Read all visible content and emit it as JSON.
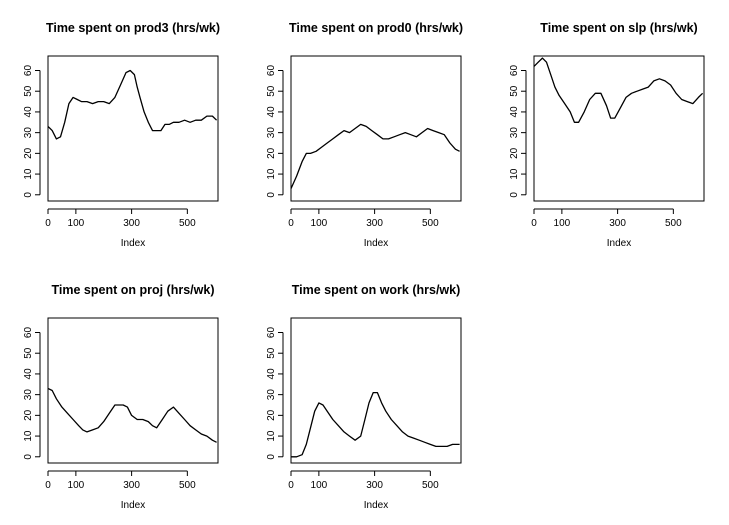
{
  "chart_data": [
    {
      "type": "line",
      "title": "Time spent on prod3 (hrs/wk)",
      "xlabel": "Index",
      "ylabel": "",
      "xlim": [
        0,
        610
      ],
      "ylim": [
        0,
        65
      ],
      "xticks": [
        0,
        100,
        300,
        500
      ],
      "yticks": [
        0,
        10,
        20,
        30,
        40,
        50,
        60
      ],
      "x": [
        0,
        15,
        30,
        45,
        60,
        75,
        90,
        105,
        120,
        140,
        160,
        180,
        200,
        220,
        240,
        260,
        280,
        295,
        310,
        320,
        330,
        345,
        360,
        375,
        390,
        405,
        420,
        435,
        450,
        470,
        490,
        510,
        530,
        550,
        570,
        590,
        605
      ],
      "y": [
        33,
        31,
        27,
        28,
        35,
        44,
        47,
        46,
        45,
        45,
        44,
        45,
        45,
        44,
        47,
        53,
        59,
        60,
        58,
        52,
        47,
        40,
        35,
        31,
        31,
        31,
        34,
        34,
        35,
        35,
        36,
        35,
        36,
        36,
        38,
        38,
        36
      ]
    },
    {
      "type": "line",
      "title": "Time spent on prod0 (hrs/wk)",
      "xlabel": "Index",
      "ylabel": "",
      "xlim": [
        0,
        610
      ],
      "ylim": [
        0,
        65
      ],
      "xticks": [
        0,
        100,
        300,
        500
      ],
      "yticks": [
        0,
        10,
        20,
        30,
        40,
        50,
        60
      ],
      "x": [
        0,
        20,
        40,
        55,
        70,
        90,
        110,
        130,
        150,
        170,
        190,
        210,
        230,
        250,
        270,
        290,
        310,
        330,
        350,
        370,
        390,
        410,
        430,
        450,
        470,
        490,
        510,
        530,
        550,
        570,
        590,
        605
      ],
      "y": [
        3,
        9,
        16,
        20,
        20,
        21,
        23,
        25,
        27,
        29,
        31,
        30,
        32,
        34,
        33,
        31,
        29,
        27,
        27,
        28,
        29,
        30,
        29,
        28,
        30,
        32,
        31,
        30,
        29,
        25,
        22,
        21
      ]
    },
    {
      "type": "line",
      "title": "Time spent on slp (hrs/wk)",
      "xlabel": "Index",
      "ylabel": "",
      "xlim": [
        0,
        610
      ],
      "ylim": [
        0,
        65
      ],
      "xticks": [
        0,
        100,
        300,
        500
      ],
      "yticks": [
        0,
        10,
        20,
        30,
        40,
        50,
        60
      ],
      "x": [
        0,
        15,
        30,
        45,
        60,
        75,
        90,
        110,
        130,
        145,
        160,
        180,
        200,
        220,
        240,
        260,
        275,
        290,
        310,
        330,
        350,
        370,
        390,
        410,
        430,
        450,
        470,
        490,
        510,
        530,
        550,
        570,
        590,
        605
      ],
      "y": [
        62,
        64,
        66,
        64,
        58,
        52,
        48,
        44,
        40,
        35,
        35,
        40,
        46,
        49,
        49,
        43,
        37,
        37,
        42,
        47,
        49,
        50,
        51,
        52,
        55,
        56,
        55,
        53,
        49,
        46,
        45,
        44,
        47,
        49
      ]
    },
    {
      "type": "line",
      "title": "Time spent on proj (hrs/wk)",
      "xlabel": "Index",
      "ylabel": "",
      "xlim": [
        0,
        610
      ],
      "ylim": [
        0,
        65
      ],
      "xticks": [
        0,
        100,
        300,
        500
      ],
      "yticks": [
        0,
        10,
        20,
        30,
        40,
        50,
        60
      ],
      "x": [
        0,
        15,
        30,
        50,
        70,
        90,
        110,
        125,
        140,
        160,
        180,
        200,
        220,
        240,
        255,
        270,
        285,
        300,
        320,
        340,
        360,
        375,
        390,
        410,
        430,
        450,
        470,
        490,
        510,
        530,
        550,
        570,
        590,
        605
      ],
      "y": [
        33,
        32,
        28,
        24,
        21,
        18,
        15,
        13,
        12,
        13,
        14,
        17,
        21,
        25,
        25,
        25,
        24,
        20,
        18,
        18,
        17,
        15,
        14,
        18,
        22,
        24,
        21,
        18,
        15,
        13,
        11,
        10,
        8,
        7
      ]
    },
    {
      "type": "line",
      "title": "Time spent on work (hrs/wk)",
      "xlabel": "Index",
      "ylabel": "",
      "xlim": [
        0,
        610
      ],
      "ylim": [
        0,
        65
      ],
      "xticks": [
        0,
        100,
        300,
        500
      ],
      "yticks": [
        0,
        10,
        20,
        30,
        40,
        50,
        60
      ],
      "x": [
        0,
        20,
        40,
        55,
        70,
        85,
        100,
        115,
        130,
        150,
        170,
        190,
        210,
        230,
        250,
        265,
        280,
        295,
        310,
        325,
        340,
        360,
        380,
        400,
        420,
        440,
        460,
        480,
        500,
        520,
        540,
        560,
        580,
        605
      ],
      "y": [
        0,
        0,
        1,
        6,
        14,
        22,
        26,
        25,
        22,
        18,
        15,
        12,
        10,
        8,
        10,
        18,
        26,
        31,
        31,
        26,
        22,
        18,
        15,
        12,
        10,
        9,
        8,
        7,
        6,
        5,
        5,
        5,
        6,
        6
      ]
    }
  ]
}
